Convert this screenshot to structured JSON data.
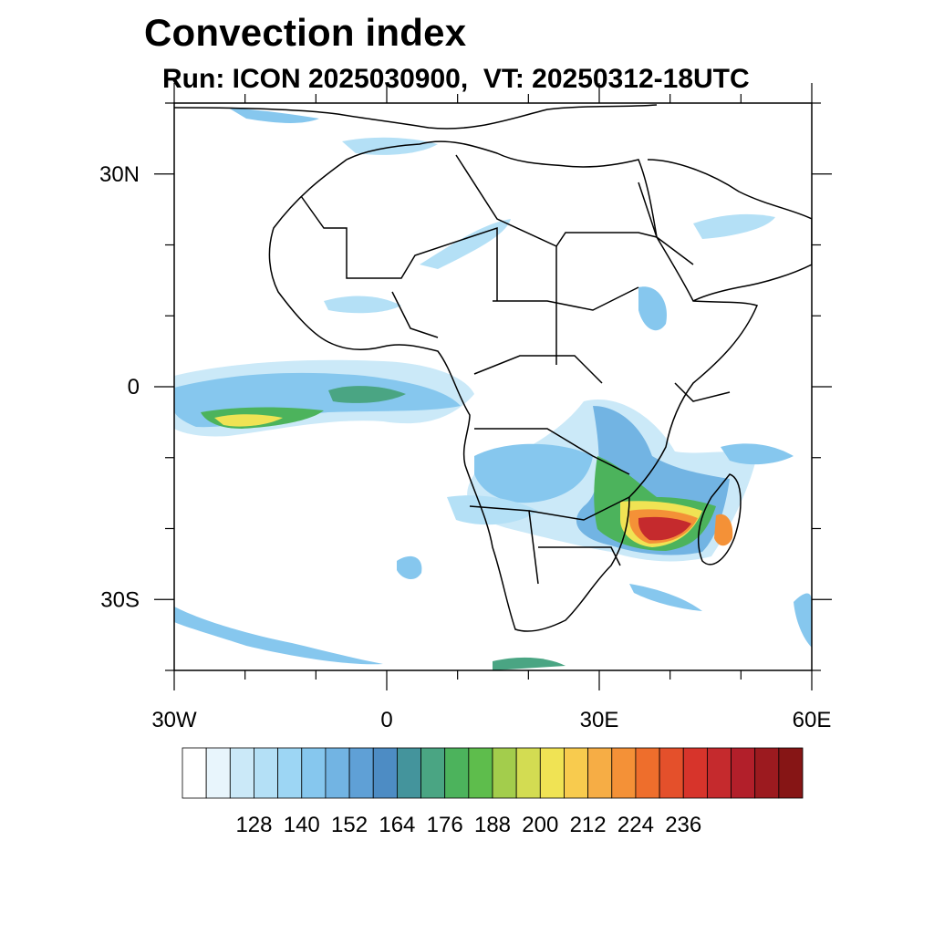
{
  "title": "Convection index",
  "subtitle": "Run: ICON 2025030900,  VT: 20250312-18UTC",
  "map": {
    "lon_range": [
      -30,
      60
    ],
    "lat_range": [
      -40,
      40
    ],
    "lat_ticks": [
      {
        "value": 30,
        "label": "30N"
      },
      {
        "value": 0,
        "label": "0"
      },
      {
        "value": -30,
        "label": "30S"
      }
    ],
    "lon_ticks": [
      {
        "value": -30,
        "label": "30W"
      },
      {
        "value": 0,
        "label": "0"
      },
      {
        "value": 30,
        "label": "30E"
      },
      {
        "value": 60,
        "label": "60E"
      }
    ],
    "minor_lat_ticks": [
      40,
      20,
      10,
      -10,
      -20,
      -40
    ],
    "minor_lon_ticks": [
      -20,
      -10,
      10,
      20,
      40,
      50
    ]
  },
  "colorbar": {
    "colors": [
      "#ffffff",
      "#e8f5fc",
      "#cbe9f8",
      "#b4e0f6",
      "#9dd6f4",
      "#86c7ee",
      "#72b4e3",
      "#5fa0d6",
      "#4d8cc4",
      "#44949c",
      "#4aa583",
      "#4cb35c",
      "#5ebd4c",
      "#a3cd4c",
      "#d3dc52",
      "#f0e354",
      "#f8cb4e",
      "#f6ad45",
      "#f49137",
      "#ee6e2c",
      "#e4502b",
      "#d7342b",
      "#c52a2d",
      "#b21f2a",
      "#9c1a1f",
      "#861515"
    ],
    "labels": [
      "128",
      "140",
      "152",
      "164",
      "176",
      "188",
      "200",
      "212",
      "224",
      "236"
    ]
  }
}
